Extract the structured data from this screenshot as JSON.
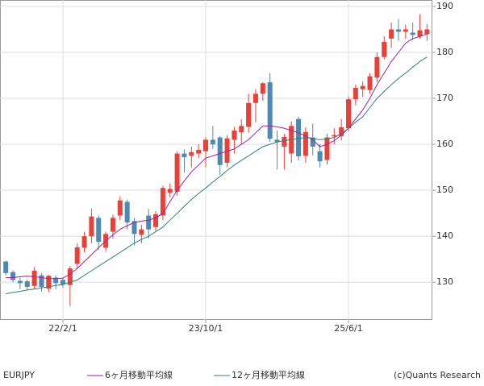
{
  "chart_data": {
    "type": "candlestick",
    "name": "EURJPY",
    "up_color": "#e8413a",
    "down_color": "#4f87b5",
    "copyright": "(c)Quants Research",
    "categories": [
      null,
      null,
      null,
      null,
      null,
      null,
      null,
      null,
      "22/2/1",
      null,
      null,
      null,
      null,
      null,
      null,
      null,
      null,
      null,
      null,
      null,
      null,
      null,
      null,
      null,
      null,
      null,
      null,
      null,
      "23/10/1",
      null,
      null,
      null,
      null,
      null,
      null,
      null,
      null,
      null,
      null,
      null,
      null,
      null,
      null,
      null,
      null,
      null,
      null,
      null,
      "25/6/1",
      null,
      null,
      null,
      null,
      null,
      null,
      null,
      null,
      null,
      null,
      null
    ],
    "open": [
      134.5,
      132.2,
      130.3,
      130.2,
      129.2,
      131.5,
      128.6,
      131.0,
      130.5,
      129.4,
      134.0,
      137.5,
      140.0,
      144.0,
      137.5,
      141.0,
      144.5,
      147.5,
      143.3,
      140.3,
      144.5,
      142.0,
      144.5,
      149.5,
      149.7,
      158.0,
      157.5,
      158.0,
      158.5,
      161.0,
      161.5,
      156.0,
      161.0,
      162.6,
      163.8,
      169.0,
      171.0,
      173.5,
      161.0,
      159.5,
      158.0,
      165.5,
      157.5,
      161.5,
      158.5,
      156.6,
      161.7,
      161.8,
      163.5,
      169.8,
      172.0,
      171.8,
      174.5,
      179.0,
      183.0,
      185.0,
      184.5,
      184.3,
      183.5,
      184.0
    ],
    "high": [
      134.7,
      132.6,
      131.0,
      130.6,
      133.3,
      132.0,
      131.6,
      131.5,
      131.0,
      133.5,
      138.5,
      141.0,
      146.0,
      144.5,
      141.0,
      144.7,
      148.7,
      148.0,
      144.0,
      142.5,
      146.0,
      145.5,
      151.0,
      151.5,
      158.5,
      158.9,
      159.5,
      160.0,
      161.5,
      164.0,
      161.8,
      162.0,
      163.8,
      165.5,
      171.0,
      172.0,
      173.5,
      175.5,
      163.0,
      162.3,
      165.0,
      166.0,
      163.7,
      164.5,
      160.0,
      162.3,
      163.5,
      165.5,
      170.4,
      173.0,
      173.7,
      175.5,
      180.0,
      183.5,
      186.5,
      187.3,
      186.0,
      186.5,
      188.3,
      186.2
    ],
    "low": [
      131.5,
      130.0,
      128.5,
      128.3,
      128.5,
      128.0,
      127.8,
      128.5,
      128.8,
      124.8,
      133.0,
      136.5,
      138.5,
      137.0,
      136.6,
      139.5,
      143.5,
      141.5,
      138.0,
      138.5,
      139.5,
      141.0,
      143.5,
      148.5,
      148.8,
      153.8,
      155.0,
      157.0,
      155.0,
      159.0,
      153.4,
      155.0,
      158.0,
      160.0,
      162.5,
      164.8,
      169.5,
      160.5,
      154.5,
      154.5,
      156.0,
      156.5,
      156.0,
      157.6,
      155.0,
      155.6,
      160.0,
      160.8,
      162.8,
      168.5,
      170.3,
      171.0,
      173.5,
      178.5,
      181.0,
      182.5,
      183.0,
      182.6,
      183.0,
      182.5
    ],
    "close": [
      132.0,
      130.5,
      129.8,
      129.0,
      132.5,
      129.0,
      131.4,
      129.8,
      129.5,
      133.0,
      137.6,
      140.0,
      144.3,
      138.8,
      140.5,
      144.0,
      147.8,
      143.0,
      140.5,
      141.5,
      141.5,
      144.8,
      150.5,
      150.3,
      158.0,
      157.2,
      158.3,
      158.8,
      161.0,
      160.0,
      155.5,
      161.3,
      163.0,
      164.0,
      169.0,
      171.0,
      173.3,
      161.2,
      160.5,
      161.6,
      164.0,
      157.4,
      162.7,
      159.5,
      156.3,
      161.5,
      162.0,
      163.7,
      169.8,
      172.3,
      172.7,
      174.8,
      179.0,
      182.3,
      185.0,
      184.5,
      185.0,
      183.8,
      184.8,
      185.0
    ],
    "series": [
      {
        "name": "6ヶ月移動平均線",
        "color": "#a020a0",
        "values": [
          131,
          131,
          131.2,
          131.3,
          131.2,
          131,
          130.8,
          130.8,
          130.9,
          131.8,
          133,
          134.5,
          136,
          137.5,
          139,
          140.3,
          141.5,
          142.3,
          143,
          143.3,
          143.5,
          144,
          145,
          147.5,
          150,
          152,
          154,
          155.5,
          157,
          157.5,
          158,
          158.5,
          159,
          160,
          161,
          162.5,
          164,
          164,
          163.8,
          163.5,
          163,
          162.5,
          161.8,
          161,
          159.5,
          160,
          160.8,
          162,
          163.5,
          165.5,
          167.5,
          170,
          173,
          175.5,
          178,
          180,
          182,
          183,
          183.5,
          184
        ]
      },
      {
        "name": "12ヶ月移動平均線",
        "color": "#2f7f7f",
        "values": [
          127.5,
          127.8,
          128,
          128.3,
          128.5,
          128.8,
          129,
          129.3,
          129.5,
          130,
          130.5,
          131.5,
          132.5,
          133.5,
          134.5,
          135.5,
          136.5,
          137.5,
          138.5,
          139.3,
          140,
          141,
          142,
          143.5,
          145,
          146.5,
          148,
          149.3,
          150.5,
          151.8,
          153,
          154.3,
          155.5,
          156.5,
          157.5,
          158.5,
          159.5,
          160,
          160.5,
          160.8,
          161,
          161.3,
          161.5,
          161.3,
          161,
          161.2,
          161.5,
          162.3,
          163.5,
          164.8,
          166,
          168,
          170,
          171.5,
          173,
          174.3,
          175.5,
          176.8,
          178,
          179
        ]
      }
    ],
    "ylim": [
      121.8,
      191.4
    ],
    "yticks": [
      130,
      140,
      150,
      160,
      170,
      180,
      190
    ],
    "grid": true
  }
}
